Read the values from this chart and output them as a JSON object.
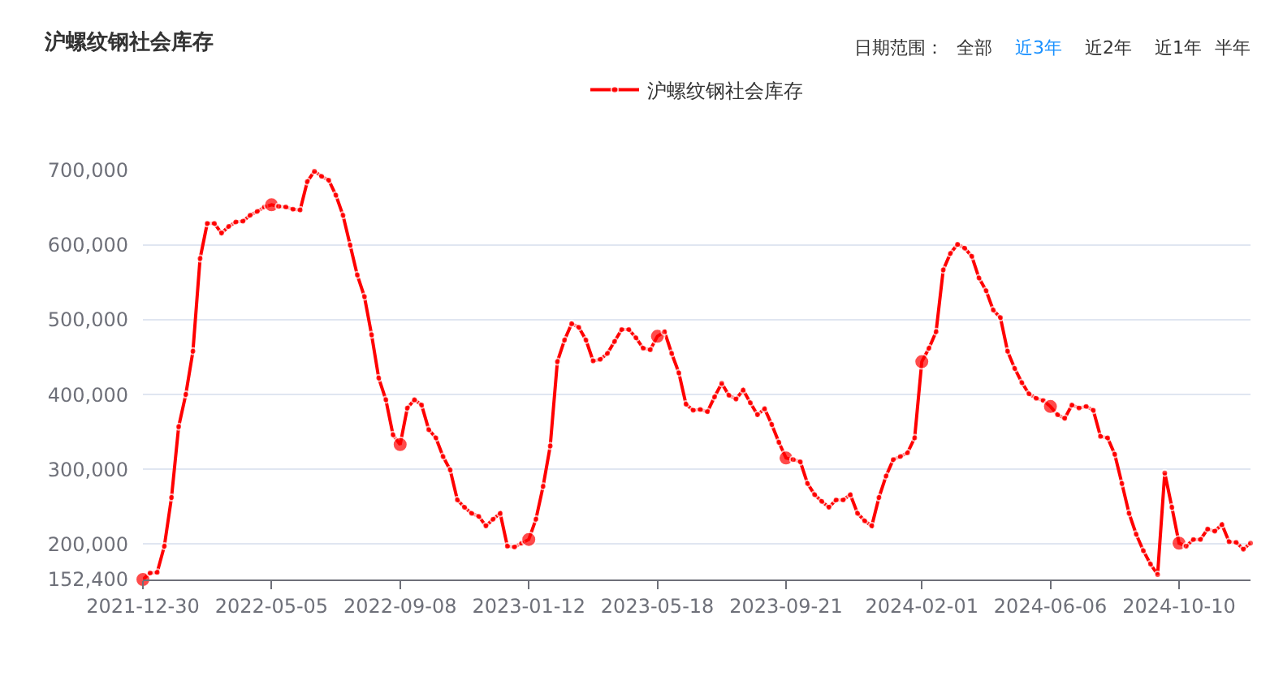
{
  "chart_data": {
    "type": "line",
    "title": "沪螺纹钢社会库存",
    "annotations": [
      "日期范围：",
      "全部",
      "近3年",
      "近2年",
      "近1年",
      "半年"
    ],
    "x": [
      "2021-12-30",
      "2022-01-06",
      "2022-01-13",
      "2022-01-20",
      "2022-01-27",
      "2022-02-03",
      "2022-02-10",
      "2022-02-17",
      "2022-02-24",
      "2022-03-03",
      "2022-03-10",
      "2022-03-17",
      "2022-03-24",
      "2022-03-31",
      "2022-04-07",
      "2022-04-14",
      "2022-04-21",
      "2022-04-28",
      "2022-05-05",
      "2022-05-12",
      "2022-05-19",
      "2022-05-26",
      "2022-06-02",
      "2022-06-09",
      "2022-06-16",
      "2022-06-23",
      "2022-06-30",
      "2022-07-07",
      "2022-07-14",
      "2022-07-21",
      "2022-07-28",
      "2022-08-04",
      "2022-08-11",
      "2022-08-18",
      "2022-08-25",
      "2022-09-01",
      "2022-09-08",
      "2022-09-15",
      "2022-09-22",
      "2022-09-29",
      "2022-10-06",
      "2022-10-13",
      "2022-10-20",
      "2022-10-27",
      "2022-11-03",
      "2022-11-10",
      "2022-11-17",
      "2022-11-24",
      "2022-12-01",
      "2022-12-08",
      "2022-12-15",
      "2022-12-22",
      "2022-12-29",
      "2023-01-05",
      "2023-01-12",
      "2023-01-19",
      "2023-01-26",
      "2023-02-02",
      "2023-02-09",
      "2023-02-16",
      "2023-02-23",
      "2023-03-02",
      "2023-03-09",
      "2023-03-16",
      "2023-03-23",
      "2023-03-30",
      "2023-04-06",
      "2023-04-13",
      "2023-04-20",
      "2023-04-27",
      "2023-05-04",
      "2023-05-11",
      "2023-05-18",
      "2023-05-25",
      "2023-06-01",
      "2023-06-08",
      "2023-06-15",
      "2023-06-22",
      "2023-06-29",
      "2023-07-06",
      "2023-07-13",
      "2023-07-20",
      "2023-07-27",
      "2023-08-03",
      "2023-08-10",
      "2023-08-17",
      "2023-08-24",
      "2023-08-31",
      "2023-09-07",
      "2023-09-14",
      "2023-09-21",
      "2023-09-28",
      "2023-10-05",
      "2023-10-12",
      "2023-10-19",
      "2023-10-26",
      "2023-11-02",
      "2023-11-09",
      "2023-11-16",
      "2023-11-23",
      "2023-11-30",
      "2023-12-07",
      "2023-12-14",
      "2023-12-21",
      "2023-12-28",
      "2024-01-04",
      "2024-01-11",
      "2024-01-18",
      "2024-01-25",
      "2024-02-01",
      "2024-02-08",
      "2024-02-15",
      "2024-02-22",
      "2024-02-29",
      "2024-03-07",
      "2024-03-14",
      "2024-03-21",
      "2024-03-28",
      "2024-04-04",
      "2024-04-11",
      "2024-04-18",
      "2024-04-25",
      "2024-05-02",
      "2024-05-09",
      "2024-05-16",
      "2024-05-23",
      "2024-05-30",
      "2024-06-06",
      "2024-06-13",
      "2024-06-20",
      "2024-06-27",
      "2024-07-04",
      "2024-07-11",
      "2024-07-18",
      "2024-07-25",
      "2024-08-01",
      "2024-08-08",
      "2024-08-15",
      "2024-08-22",
      "2024-08-29",
      "2024-09-05",
      "2024-09-12",
      "2024-09-19",
      "2024-09-26",
      "2024-10-03",
      "2024-10-10",
      "2024-10-17",
      "2024-10-24",
      "2024-10-31",
      "2024-11-07",
      "2024-11-14",
      "2024-11-21",
      "2024-11-28",
      "2024-12-05",
      "2024-12-12",
      "2024-12-19"
    ],
    "series": [
      {
        "name": "沪螺纹钢社会库存",
        "color": "#ff0000",
        "values": [
          152400,
          161000,
          162000,
          197000,
          262000,
          357000,
          400000,
          458000,
          582000,
          629000,
          629000,
          616000,
          625000,
          631000,
          632000,
          640000,
          645000,
          651000,
          654000,
          652000,
          651000,
          648000,
          647000,
          685000,
          699000,
          692000,
          687000,
          667000,
          640000,
          600000,
          560000,
          531000,
          480000,
          422000,
          393000,
          346000,
          333000,
          382000,
          393000,
          386000,
          353000,
          342000,
          317000,
          299000,
          259000,
          249000,
          241000,
          237000,
          224000,
          233000,
          241000,
          197000,
          196000,
          201000,
          206000,
          233000,
          277000,
          331000,
          444000,
          473000,
          495000,
          490000,
          473000,
          445000,
          447000,
          455000,
          471000,
          487000,
          487000,
          476000,
          462000,
          460000,
          478000,
          484000,
          455000,
          429000,
          387000,
          379000,
          380000,
          377000,
          397000,
          415000,
          399000,
          394000,
          406000,
          389000,
          373000,
          381000,
          360000,
          336000,
          315000,
          313000,
          310000,
          281000,
          266000,
          257000,
          249000,
          259000,
          259000,
          266000,
          241000,
          231000,
          224000,
          262000,
          291000,
          313000,
          317000,
          322000,
          342000,
          444000,
          462000,
          484000,
          567000,
          589000,
          601000,
          596000,
          585000,
          556000,
          539000,
          513000,
          503000,
          458000,
          435000,
          416000,
          401000,
          395000,
          392000,
          384000,
          373000,
          368000,
          386000,
          382000,
          384000,
          379000,
          344000,
          342000,
          320000,
          281000,
          241000,
          213000,
          191000,
          173000,
          159000,
          295000,
          249000,
          201000,
          197000,
          206000,
          206000,
          220000,
          217000,
          226000,
          203000,
          202000,
          193000,
          201000
        ]
      }
    ],
    "xlim": [
      "2021-12-30",
      "2024-12-19"
    ],
    "xticks": [
      "2021-12-30",
      "2022-05-05",
      "2022-09-08",
      "2023-01-12",
      "2023-05-18",
      "2023-09-21",
      "2024-02-01",
      "2024-06-06",
      "2024-10-10"
    ],
    "ylim": [
      152400,
      700000
    ],
    "yticks": [
      {
        "value": 152400,
        "label": "152,400"
      },
      {
        "value": 200000,
        "label": "200,000"
      },
      {
        "value": 300000,
        "label": "300,000"
      },
      {
        "value": 400000,
        "label": "400,000"
      },
      {
        "value": 500000,
        "label": "500,000"
      },
      {
        "value": 600000,
        "label": "600,000"
      },
      {
        "value": 700000,
        "label": "700,000"
      }
    ],
    "grid": "y",
    "legend": "top",
    "marker": "circle",
    "line_style": "solid"
  }
}
